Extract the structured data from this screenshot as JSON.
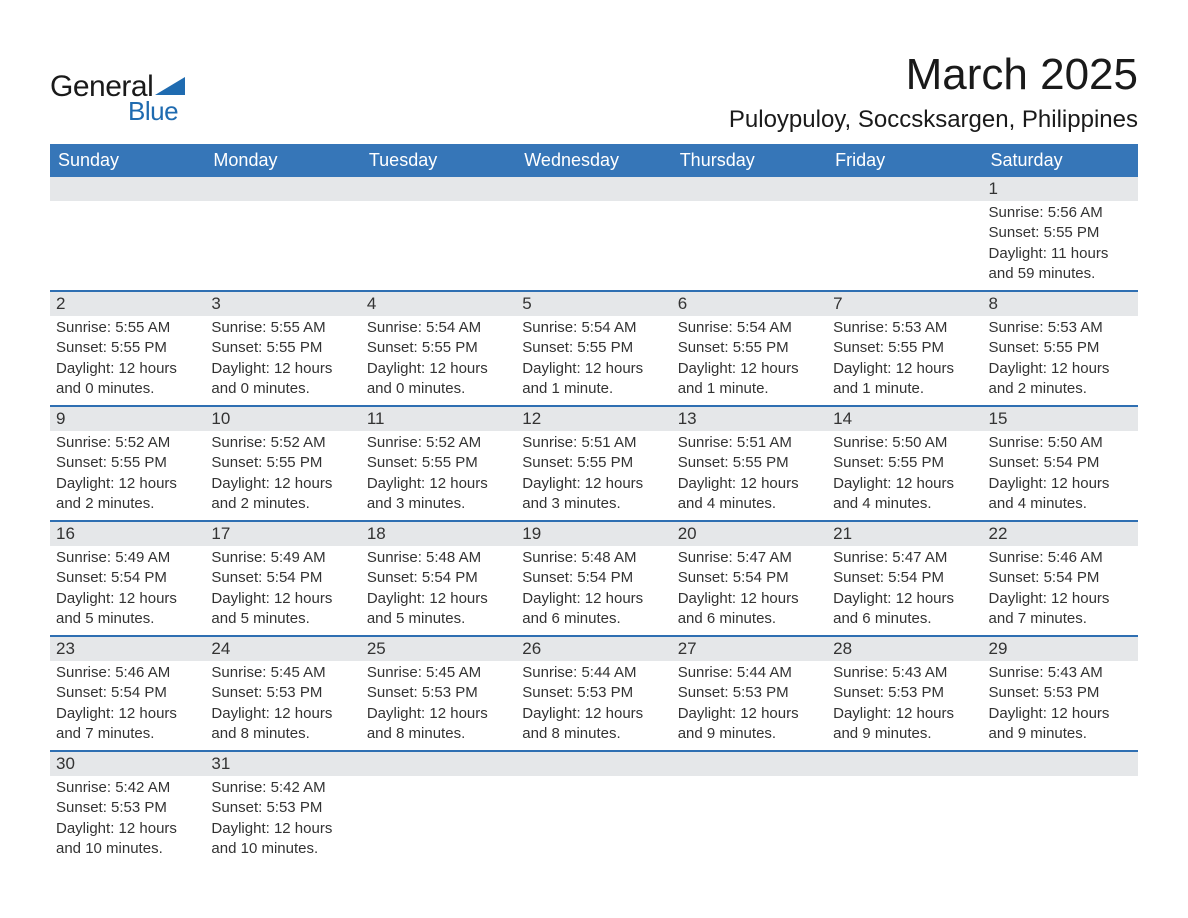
{
  "brand": {
    "general": "General",
    "blue": "Blue"
  },
  "title": {
    "month": "March 2025",
    "location": "Puloypuloy, Soccsksargen, Philippines"
  },
  "colors": {
    "header_bg": "#3676b8",
    "header_text": "#ffffff",
    "daynum_bg": "#e5e7e9",
    "row_divider": "#2f6fb2",
    "body_text": "#333333",
    "brand_blue": "#1f6bb0",
    "background": "#ffffff"
  },
  "day_names": [
    "Sunday",
    "Monday",
    "Tuesday",
    "Wednesday",
    "Thursday",
    "Friday",
    "Saturday"
  ],
  "weeks": [
    [
      {
        "day": "",
        "sunrise": "",
        "sunset": "",
        "daylight": ""
      },
      {
        "day": "",
        "sunrise": "",
        "sunset": "",
        "daylight": ""
      },
      {
        "day": "",
        "sunrise": "",
        "sunset": "",
        "daylight": ""
      },
      {
        "day": "",
        "sunrise": "",
        "sunset": "",
        "daylight": ""
      },
      {
        "day": "",
        "sunrise": "",
        "sunset": "",
        "daylight": ""
      },
      {
        "day": "",
        "sunrise": "",
        "sunset": "",
        "daylight": ""
      },
      {
        "day": "1",
        "sunrise": "Sunrise: 5:56 AM",
        "sunset": "Sunset: 5:55 PM",
        "daylight": "Daylight: 11 hours and 59 minutes."
      }
    ],
    [
      {
        "day": "2",
        "sunrise": "Sunrise: 5:55 AM",
        "sunset": "Sunset: 5:55 PM",
        "daylight": "Daylight: 12 hours and 0 minutes."
      },
      {
        "day": "3",
        "sunrise": "Sunrise: 5:55 AM",
        "sunset": "Sunset: 5:55 PM",
        "daylight": "Daylight: 12 hours and 0 minutes."
      },
      {
        "day": "4",
        "sunrise": "Sunrise: 5:54 AM",
        "sunset": "Sunset: 5:55 PM",
        "daylight": "Daylight: 12 hours and 0 minutes."
      },
      {
        "day": "5",
        "sunrise": "Sunrise: 5:54 AM",
        "sunset": "Sunset: 5:55 PM",
        "daylight": "Daylight: 12 hours and 1 minute."
      },
      {
        "day": "6",
        "sunrise": "Sunrise: 5:54 AM",
        "sunset": "Sunset: 5:55 PM",
        "daylight": "Daylight: 12 hours and 1 minute."
      },
      {
        "day": "7",
        "sunrise": "Sunrise: 5:53 AM",
        "sunset": "Sunset: 5:55 PM",
        "daylight": "Daylight: 12 hours and 1 minute."
      },
      {
        "day": "8",
        "sunrise": "Sunrise: 5:53 AM",
        "sunset": "Sunset: 5:55 PM",
        "daylight": "Daylight: 12 hours and 2 minutes."
      }
    ],
    [
      {
        "day": "9",
        "sunrise": "Sunrise: 5:52 AM",
        "sunset": "Sunset: 5:55 PM",
        "daylight": "Daylight: 12 hours and 2 minutes."
      },
      {
        "day": "10",
        "sunrise": "Sunrise: 5:52 AM",
        "sunset": "Sunset: 5:55 PM",
        "daylight": "Daylight: 12 hours and 2 minutes."
      },
      {
        "day": "11",
        "sunrise": "Sunrise: 5:52 AM",
        "sunset": "Sunset: 5:55 PM",
        "daylight": "Daylight: 12 hours and 3 minutes."
      },
      {
        "day": "12",
        "sunrise": "Sunrise: 5:51 AM",
        "sunset": "Sunset: 5:55 PM",
        "daylight": "Daylight: 12 hours and 3 minutes."
      },
      {
        "day": "13",
        "sunrise": "Sunrise: 5:51 AM",
        "sunset": "Sunset: 5:55 PM",
        "daylight": "Daylight: 12 hours and 4 minutes."
      },
      {
        "day": "14",
        "sunrise": "Sunrise: 5:50 AM",
        "sunset": "Sunset: 5:55 PM",
        "daylight": "Daylight: 12 hours and 4 minutes."
      },
      {
        "day": "15",
        "sunrise": "Sunrise: 5:50 AM",
        "sunset": "Sunset: 5:54 PM",
        "daylight": "Daylight: 12 hours and 4 minutes."
      }
    ],
    [
      {
        "day": "16",
        "sunrise": "Sunrise: 5:49 AM",
        "sunset": "Sunset: 5:54 PM",
        "daylight": "Daylight: 12 hours and 5 minutes."
      },
      {
        "day": "17",
        "sunrise": "Sunrise: 5:49 AM",
        "sunset": "Sunset: 5:54 PM",
        "daylight": "Daylight: 12 hours and 5 minutes."
      },
      {
        "day": "18",
        "sunrise": "Sunrise: 5:48 AM",
        "sunset": "Sunset: 5:54 PM",
        "daylight": "Daylight: 12 hours and 5 minutes."
      },
      {
        "day": "19",
        "sunrise": "Sunrise: 5:48 AM",
        "sunset": "Sunset: 5:54 PM",
        "daylight": "Daylight: 12 hours and 6 minutes."
      },
      {
        "day": "20",
        "sunrise": "Sunrise: 5:47 AM",
        "sunset": "Sunset: 5:54 PM",
        "daylight": "Daylight: 12 hours and 6 minutes."
      },
      {
        "day": "21",
        "sunrise": "Sunrise: 5:47 AM",
        "sunset": "Sunset: 5:54 PM",
        "daylight": "Daylight: 12 hours and 6 minutes."
      },
      {
        "day": "22",
        "sunrise": "Sunrise: 5:46 AM",
        "sunset": "Sunset: 5:54 PM",
        "daylight": "Daylight: 12 hours and 7 minutes."
      }
    ],
    [
      {
        "day": "23",
        "sunrise": "Sunrise: 5:46 AM",
        "sunset": "Sunset: 5:54 PM",
        "daylight": "Daylight: 12 hours and 7 minutes."
      },
      {
        "day": "24",
        "sunrise": "Sunrise: 5:45 AM",
        "sunset": "Sunset: 5:53 PM",
        "daylight": "Daylight: 12 hours and 8 minutes."
      },
      {
        "day": "25",
        "sunrise": "Sunrise: 5:45 AM",
        "sunset": "Sunset: 5:53 PM",
        "daylight": "Daylight: 12 hours and 8 minutes."
      },
      {
        "day": "26",
        "sunrise": "Sunrise: 5:44 AM",
        "sunset": "Sunset: 5:53 PM",
        "daylight": "Daylight: 12 hours and 8 minutes."
      },
      {
        "day": "27",
        "sunrise": "Sunrise: 5:44 AM",
        "sunset": "Sunset: 5:53 PM",
        "daylight": "Daylight: 12 hours and 9 minutes."
      },
      {
        "day": "28",
        "sunrise": "Sunrise: 5:43 AM",
        "sunset": "Sunset: 5:53 PM",
        "daylight": "Daylight: 12 hours and 9 minutes."
      },
      {
        "day": "29",
        "sunrise": "Sunrise: 5:43 AM",
        "sunset": "Sunset: 5:53 PM",
        "daylight": "Daylight: 12 hours and 9 minutes."
      }
    ],
    [
      {
        "day": "30",
        "sunrise": "Sunrise: 5:42 AM",
        "sunset": "Sunset: 5:53 PM",
        "daylight": "Daylight: 12 hours and 10 minutes."
      },
      {
        "day": "31",
        "sunrise": "Sunrise: 5:42 AM",
        "sunset": "Sunset: 5:53 PM",
        "daylight": "Daylight: 12 hours and 10 minutes."
      },
      {
        "day": "",
        "sunrise": "",
        "sunset": "",
        "daylight": ""
      },
      {
        "day": "",
        "sunrise": "",
        "sunset": "",
        "daylight": ""
      },
      {
        "day": "",
        "sunrise": "",
        "sunset": "",
        "daylight": ""
      },
      {
        "day": "",
        "sunrise": "",
        "sunset": "",
        "daylight": ""
      },
      {
        "day": "",
        "sunrise": "",
        "sunset": "",
        "daylight": ""
      }
    ]
  ]
}
